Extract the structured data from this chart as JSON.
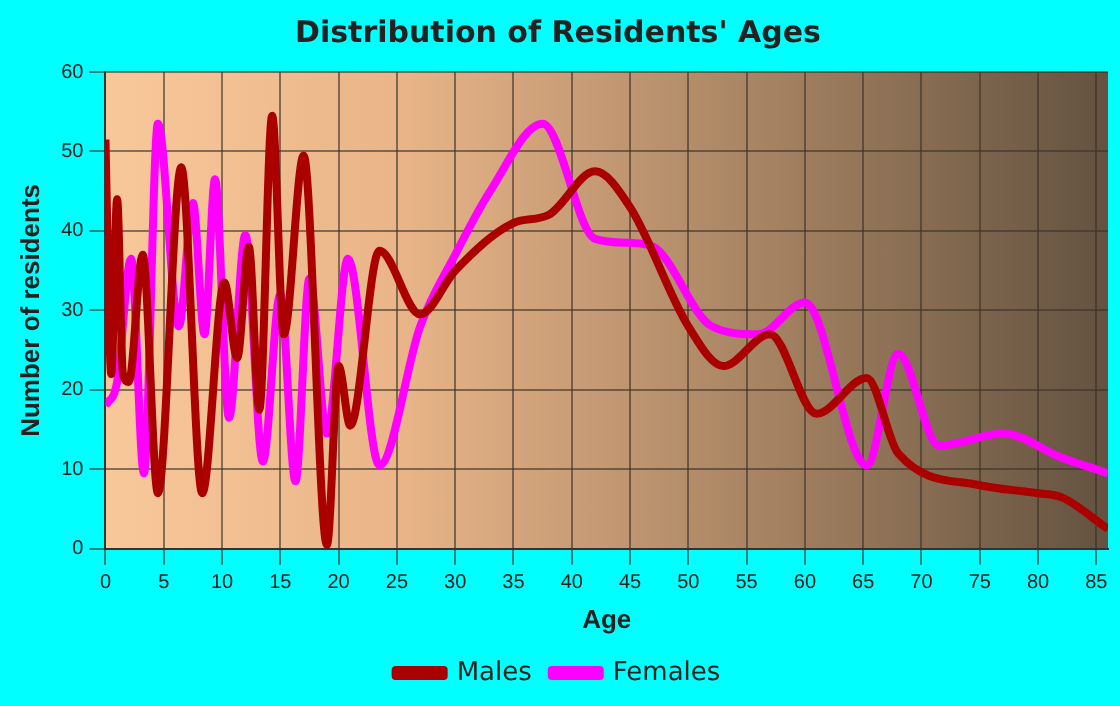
{
  "chart_data": {
    "type": "line",
    "title": "Distribution of Residents' Ages",
    "xlabel": "Age",
    "ylabel": "Number of residents",
    "xlim": [
      0,
      86
    ],
    "xticks": [
      0,
      5,
      10,
      15,
      20,
      25,
      30,
      35,
      40,
      45,
      50,
      55,
      60,
      65,
      70,
      75,
      80,
      85
    ],
    "ylim": [
      0,
      60
    ],
    "yticks": [
      0,
      10,
      20,
      30,
      40,
      50,
      60
    ],
    "grid": true,
    "legend": "bottom",
    "marker": "none",
    "line_style": "solid",
    "series": [
      {
        "name": "Males",
        "color": "#aa0000",
        "x": [
          0,
          0.5,
          1,
          1.5,
          2,
          3.2,
          4.5,
          6.5,
          8.3,
          10.2,
          11.3,
          12.3,
          13.2,
          14.3,
          15.3,
          17,
          19,
          20,
          21,
          23.5,
          27,
          30,
          35,
          38,
          42,
          45,
          50,
          53,
          57,
          61,
          65.3,
          68,
          75,
          80,
          82,
          86
        ],
        "values": [
          51.5,
          22,
          44,
          22,
          21,
          37,
          7,
          48,
          7,
          33.5,
          24,
          38,
          17.5,
          54.5,
          27,
          49.5,
          0.5,
          23,
          15.5,
          37.5,
          29.5,
          35,
          41,
          42,
          47.5,
          43,
          28,
          23,
          27,
          17,
          21.5,
          12,
          8,
          7,
          6.5,
          2.5
        ]
      },
      {
        "name": "Females",
        "color": "#ff00ff",
        "x": [
          0,
          1,
          2.2,
          3.3,
          4.5,
          6.3,
          7.5,
          8.5,
          9.4,
          10.6,
          12,
          13.5,
          15,
          16.3,
          17.5,
          19,
          20.8,
          23.5,
          27,
          30,
          33,
          37.5,
          42,
          45,
          47,
          52,
          56,
          60,
          65.3,
          68,
          71.5,
          77,
          82,
          86
        ],
        "values": [
          18,
          21,
          36.5,
          9.5,
          53.5,
          28,
          43.5,
          27,
          46.5,
          16.5,
          39.5,
          11,
          32,
          8.5,
          34,
          14.5,
          36.5,
          10.5,
          28,
          37,
          45,
          53.5,
          39,
          38.5,
          38,
          28,
          27,
          31,
          10.5,
          24.5,
          13,
          14.5,
          11.5,
          9.5
        ]
      }
    ]
  }
}
